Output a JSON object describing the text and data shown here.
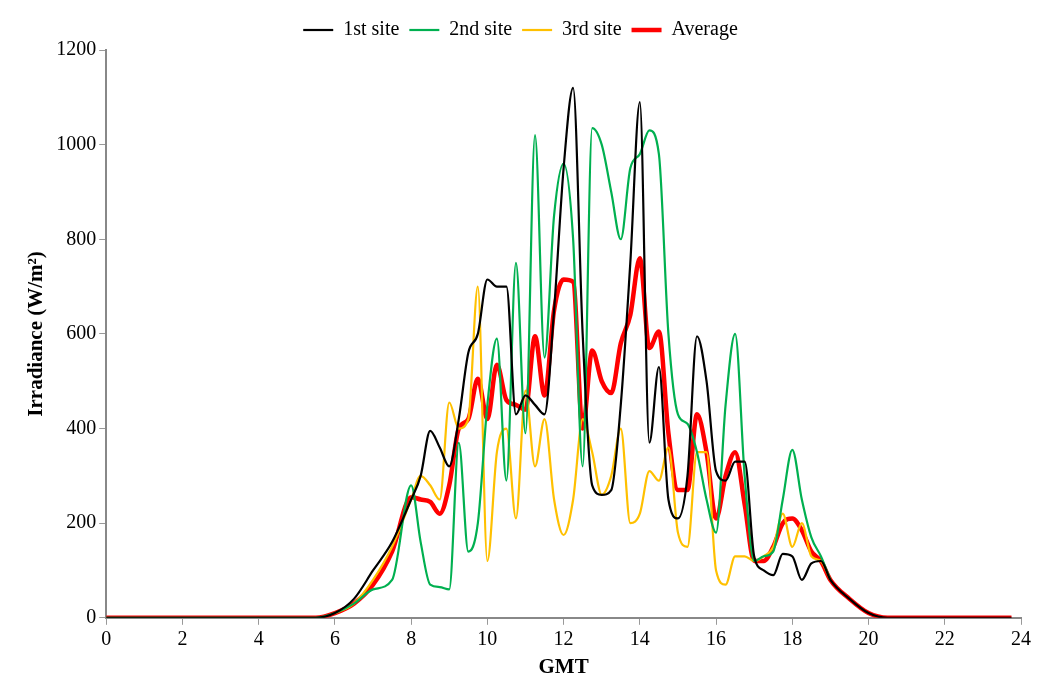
{
  "chart_data": {
    "type": "line",
    "xlabel": "GMT",
    "ylabel": "Irradiance (W/m²)",
    "x": [
      0,
      5.5,
      6,
      6.5,
      7,
      7.5,
      8,
      8.25,
      8.5,
      8.75,
      9,
      9.25,
      9.5,
      9.75,
      10,
      10.25,
      10.5,
      10.75,
      11,
      11.25,
      11.5,
      11.75,
      12,
      12.25,
      12.5,
      12.75,
      13,
      13.25,
      13.5,
      13.75,
      14,
      14.25,
      14.5,
      14.75,
      15,
      15.25,
      15.5,
      15.75,
      16,
      16.25,
      16.5,
      16.75,
      17,
      17.25,
      17.5,
      17.75,
      18,
      18.25,
      18.5,
      18.75,
      19,
      19.5,
      20,
      20.5,
      23.75
    ],
    "series": [
      {
        "name": "1st site",
        "color": "#000000",
        "values": [
          0,
          0,
          10,
          40,
          100,
          160,
          250,
          300,
          395,
          360,
          320,
          420,
          560,
          600,
          715,
          700,
          700,
          430,
          470,
          450,
          430,
          650,
          950,
          1120,
          600,
          280,
          260,
          270,
          450,
          750,
          1090,
          370,
          530,
          250,
          210,
          300,
          595,
          500,
          310,
          290,
          330,
          330,
          130,
          100,
          90,
          135,
          130,
          80,
          115,
          120,
          80,
          40,
          10,
          0,
          0
        ]
      },
      {
        "name": "2nd site",
        "color": "#00b050",
        "values": [
          0,
          0,
          10,
          30,
          60,
          80,
          280,
          160,
          70,
          65,
          60,
          370,
          140,
          200,
          450,
          590,
          290,
          750,
          390,
          1020,
          550,
          850,
          960,
          800,
          320,
          1035,
          1000,
          900,
          800,
          950,
          980,
          1030,
          980,
          600,
          430,
          410,
          350,
          250,
          180,
          450,
          600,
          300,
          120,
          130,
          140,
          250,
          355,
          250,
          170,
          130,
          80,
          null,
          null,
          null,
          null
        ]
      },
      {
        "name": "3rd site",
        "color": "#ffc000",
        "values": [
          null,
          null,
          10,
          30,
          80,
          150,
          250,
          300,
          280,
          250,
          455,
          400,
          420,
          700,
          120,
          350,
          400,
          210,
          480,
          320,
          420,
          250,
          175,
          250,
          420,
          350,
          260,
          300,
          400,
          200,
          220,
          310,
          290,
          360,
          180,
          150,
          350,
          350,
          100,
          70,
          130,
          130,
          120,
          130,
          150,
          220,
          150,
          200,
          130,
          120,
          80,
          null,
          null,
          null,
          null
        ]
      },
      {
        "name": "Average",
        "color": "#ff0000",
        "values": [
          0,
          0,
          10,
          30,
          70,
          140,
          255,
          250,
          245,
          220,
          280,
          400,
          420,
          505,
          420,
          535,
          460,
          450,
          440,
          595,
          470,
          650,
          715,
          710,
          400,
          565,
          500,
          475,
          580,
          640,
          760,
          570,
          605,
          390,
          270,
          270,
          430,
          350,
          210,
          300,
          350,
          240,
          120,
          120,
          150,
          200,
          210,
          185,
          140,
          120,
          80,
          40,
          10,
          0,
          0
        ]
      }
    ],
    "xlim": [
      0,
      24
    ],
    "xticks": [
      0,
      2,
      4,
      6,
      8,
      10,
      12,
      14,
      16,
      18,
      20,
      22,
      24
    ],
    "ylim": [
      0,
      1200
    ],
    "yticks": [
      0,
      200,
      400,
      600,
      800,
      1000,
      1200
    ],
    "grid": false,
    "legend": "top",
    "marker": "none",
    "line_style": "solid"
  }
}
